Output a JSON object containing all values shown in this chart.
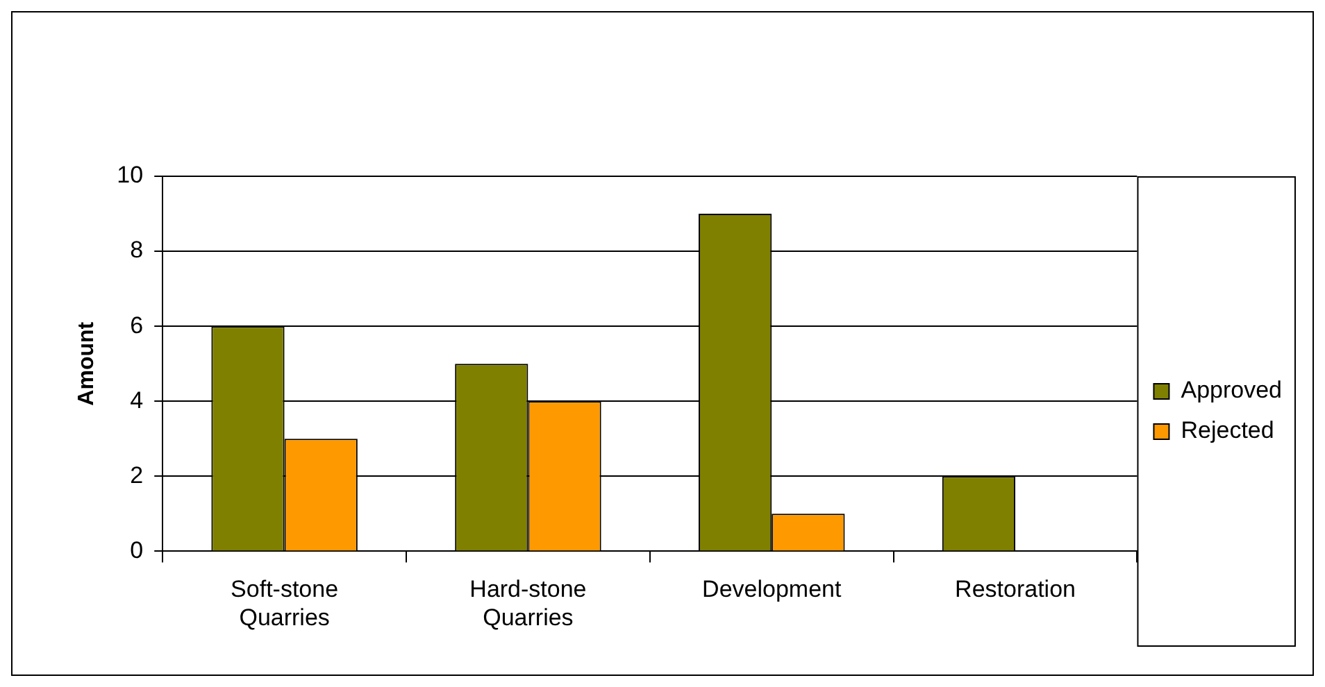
{
  "chart_data": {
    "type": "bar",
    "ylabel": "Amount",
    "categories": [
      "Soft-stone Quarries",
      "Hard-stone Quarries",
      "Development",
      "Restoration"
    ],
    "series": [
      {
        "name": "Approved",
        "color": "#808000",
        "values": [
          6,
          5,
          9,
          2
        ]
      },
      {
        "name": "Rejected",
        "color": "#ff9900",
        "values": [
          3,
          4,
          1,
          0
        ]
      }
    ],
    "ylim": [
      0,
      10
    ],
    "yticks": [
      0,
      2,
      4,
      6,
      8,
      10
    ],
    "grid": "y",
    "legend": "right"
  }
}
